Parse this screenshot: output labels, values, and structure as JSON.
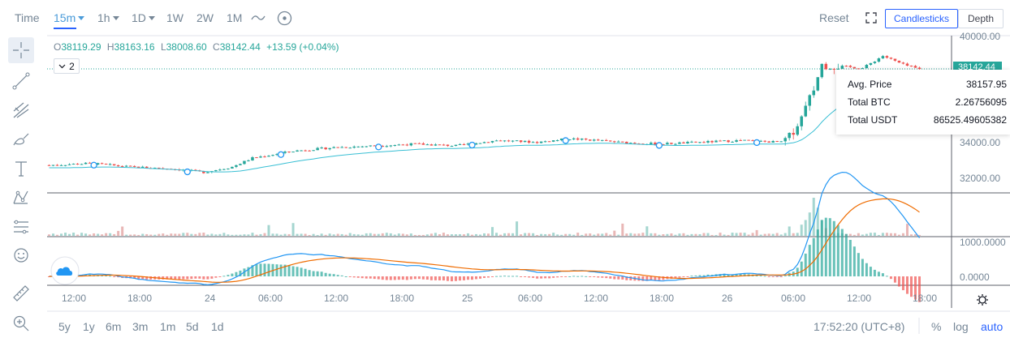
{
  "toolbar": {
    "time_label": "Time",
    "intervals": [
      "15m",
      "1h",
      "1D",
      "1W",
      "2W",
      "1M"
    ],
    "reset_label": "Reset",
    "view_buttons": [
      "Candlesticks",
      "Depth"
    ]
  },
  "ohlc": {
    "open_key": "O",
    "open": "38119.29",
    "high_key": "H",
    "high": "38163.16",
    "low_key": "L",
    "low": "38008.60",
    "close_key": "C",
    "close": "38142.44",
    "change": "+13.59 (+0.04%)"
  },
  "indicator_count": "2",
  "last_price_tag": "38142.44",
  "tooltip": {
    "avg_price_label": "Avg. Price",
    "avg_price": "38157.95",
    "total_btc_label": "Total BTC",
    "total_btc": "2.26756095",
    "total_usdt_label": "Total USDT",
    "total_usdt": "86525.49605382"
  },
  "y_axis_price": [
    "40000.00",
    "34000.00",
    "32000.00"
  ],
  "y_axis_osc": [
    "1000.0000",
    "0.0000"
  ],
  "x_axis": [
    "12:00",
    "18:00",
    "24",
    "06:00",
    "12:00",
    "18:00",
    "25",
    "06:00",
    "12:00",
    "18:00",
    "26",
    "06:00",
    "12:00",
    "18:00"
  ],
  "ranges": [
    "5y",
    "1y",
    "6m",
    "3m",
    "1m",
    "5d",
    "1d"
  ],
  "clock": "17:52:20 (UTC+8)",
  "scale_options": [
    "%",
    "log",
    "auto"
  ],
  "colors": {
    "up": "#26a69a",
    "down": "#ef5350",
    "accent": "#2962ff",
    "ma_fast": "#2196f3",
    "ma_slow": "#ef6c00"
  },
  "chart_data": {
    "type": "candlestick",
    "price_axis_ticks": [
      40000,
      34000,
      32000
    ],
    "osc_axis_ticks": [
      1000,
      0
    ],
    "price_trend": [
      [
        0,
        32700
      ],
      [
        10,
        32800
      ],
      [
        20,
        32600
      ],
      [
        30,
        32500
      ],
      [
        38,
        32300
      ],
      [
        45,
        32600
      ],
      [
        50,
        33100
      ],
      [
        55,
        33300
      ],
      [
        60,
        33500
      ],
      [
        70,
        33700
      ],
      [
        80,
        33800
      ],
      [
        90,
        33900
      ],
      [
        100,
        33800
      ],
      [
        110,
        34100
      ],
      [
        120,
        34000
      ],
      [
        128,
        34200
      ],
      [
        135,
        34100
      ],
      [
        140,
        34000
      ],
      [
        150,
        33900
      ],
      [
        160,
        34000
      ],
      [
        170,
        34100
      ],
      [
        180,
        34000
      ],
      [
        182,
        34300
      ],
      [
        185,
        35400
      ],
      [
        188,
        37000
      ],
      [
        190,
        38400
      ],
      [
        195,
        38300
      ],
      [
        200,
        38200
      ],
      [
        205,
        38900
      ],
      [
        210,
        38400
      ],
      [
        214,
        38140
      ]
    ]
  }
}
